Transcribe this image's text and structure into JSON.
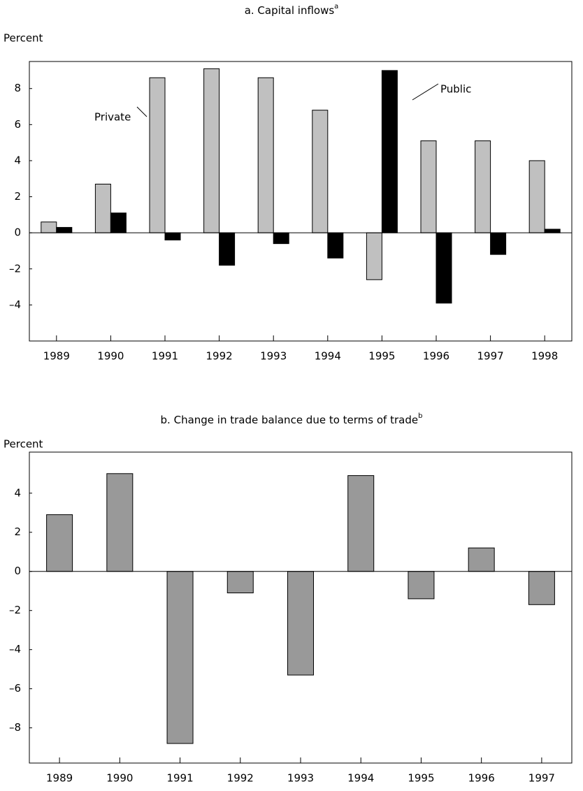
{
  "chart_data": [
    {
      "type": "bar",
      "title": "a. Capital inflows",
      "title_superscript": "a",
      "y_label": "Percent",
      "categories": [
        "1989",
        "1990",
        "1991",
        "1992",
        "1993",
        "1994",
        "1995",
        "1996",
        "1997",
        "1998"
      ],
      "series": [
        {
          "name": "Private",
          "color": "#c0c0c0",
          "values": [
            0.6,
            2.7,
            8.6,
            9.1,
            8.6,
            6.8,
            -2.6,
            5.1,
            5.1,
            4.0
          ]
        },
        {
          "name": "Public",
          "color": "#000000",
          "values": [
            0.3,
            1.1,
            -0.4,
            -1.8,
            -0.6,
            -1.4,
            9.0,
            -3.9,
            -1.2,
            0.2
          ]
        }
      ],
      "ylim": [
        -6,
        9.5
      ],
      "yticks": [
        {
          "value": -4,
          "label": "–4"
        },
        {
          "value": -2,
          "label": "–2"
        },
        0,
        2,
        4,
        6,
        8
      ]
    },
    {
      "type": "bar",
      "title": "b. Change in trade balance due to terms of trade",
      "title_superscript": "b",
      "y_label": "Percent",
      "categories": [
        "1989",
        "1990",
        "1991",
        "1992",
        "1993",
        "1994",
        "1995",
        "1996",
        "1997"
      ],
      "series": [
        {
          "color": "#999999",
          "values": [
            2.9,
            5.0,
            -8.8,
            -1.1,
            -5.3,
            4.9,
            -1.4,
            1.2,
            -1.7
          ]
        }
      ],
      "ylim": [
        -9.8,
        6.1
      ],
      "yticks": [
        {
          "value": -8,
          "label": "–8"
        },
        {
          "value": -6,
          "label": "–6"
        },
        {
          "value": -4,
          "label": "–4"
        },
        {
          "value": -2,
          "label": "–2"
        },
        0,
        2,
        4
      ]
    }
  ]
}
